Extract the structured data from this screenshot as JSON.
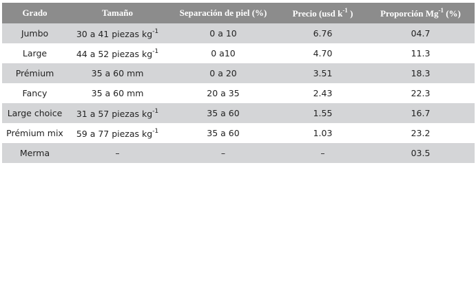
{
  "table": {
    "header": [
      {
        "text": "Grado"
      },
      {
        "text": "Tamaño"
      },
      {
        "text": "Separación de piel (%)"
      },
      {
        "text": "Precio (usd k",
        "sup": "-1",
        "tail": " )"
      },
      {
        "text": "Proporción Mg",
        "sup": "-1",
        "tail": " (%)"
      }
    ],
    "rows": [
      [
        {
          "text": "Jumbo"
        },
        {
          "text": "30 a 41 piezas kg",
          "sup": "-1"
        },
        {
          "text": "0 a 10"
        },
        {
          "text": "6.76"
        },
        {
          "text": "04.7"
        }
      ],
      [
        {
          "text": "Large"
        },
        {
          "text": "44 a 52 piezas kg",
          "sup": "-1"
        },
        {
          "text": "0 a10"
        },
        {
          "text": "4.70"
        },
        {
          "text": "11.3"
        }
      ],
      [
        {
          "text": "Prémium"
        },
        {
          "text": "35 a 60 mm"
        },
        {
          "text": "0 a 20"
        },
        {
          "text": "3.51"
        },
        {
          "text": "18.3"
        }
      ],
      [
        {
          "text": "Fancy"
        },
        {
          "text": "35 a 60 mm"
        },
        {
          "text": "20 a 35"
        },
        {
          "text": "2.43"
        },
        {
          "text": "22.3"
        }
      ],
      [
        {
          "text": "Large choice"
        },
        {
          "text": "31 a 57 piezas kg",
          "sup": "-1"
        },
        {
          "text": "35 a 60"
        },
        {
          "text": "1.55"
        },
        {
          "text": "16.7"
        }
      ],
      [
        {
          "text": "Prémium mix"
        },
        {
          "text": "59 a 77 piezas kg",
          "sup": "-1"
        },
        {
          "text": "35 a 60"
        },
        {
          "text": "1.03"
        },
        {
          "text": "23.2"
        }
      ],
      [
        {
          "text": "Merma"
        },
        {
          "text": "–"
        },
        {
          "text": "–"
        },
        {
          "text": "–"
        },
        {
          "text": "03.5"
        }
      ]
    ]
  }
}
